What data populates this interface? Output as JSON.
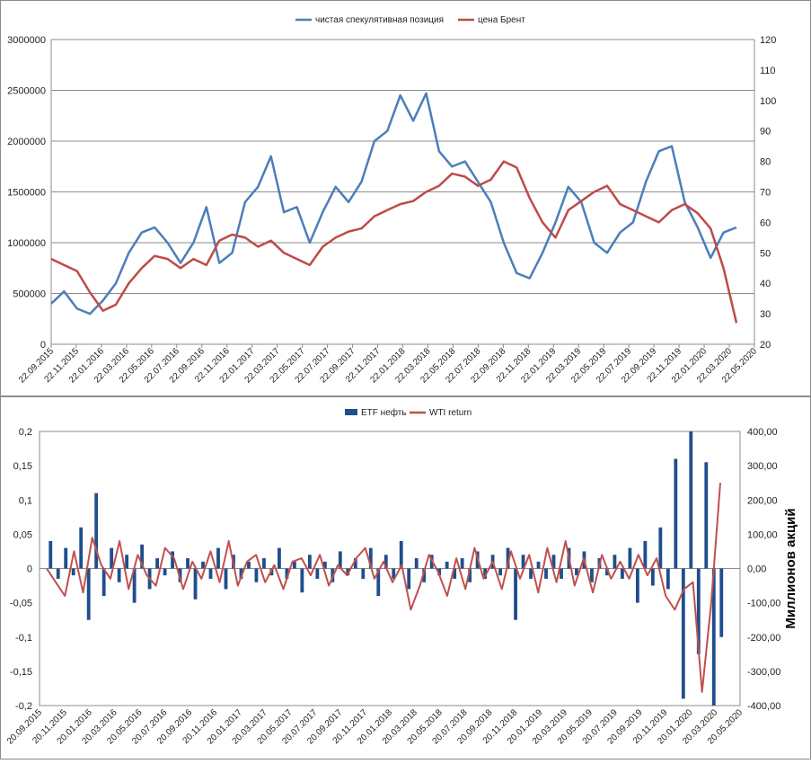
{
  "colors": {
    "blue": "#4a7ebb",
    "red": "#be4b48",
    "navy": "#1f4e8c",
    "darkred": "#c0504d"
  },
  "chart_data": [
    {
      "type": "line",
      "legend": [
        "чистая спекулятивная позиция",
        "цена Брент"
      ],
      "legend_position": "top-center",
      "y_left": {
        "min": 0,
        "max": 3000000,
        "step": 500000,
        "ticks": [
          "0",
          "500000",
          "1000000",
          "1500000",
          "2000000",
          "2500000",
          "3000000"
        ]
      },
      "y_right": {
        "min": 20,
        "max": 120,
        "step": 10,
        "ticks": [
          "20",
          "30",
          "40",
          "50",
          "60",
          "70",
          "80",
          "90",
          "100",
          "110",
          "120"
        ]
      },
      "x_ticks": [
        "22.09.2015",
        "22.11.2015",
        "22.01.2016",
        "22.03.2016",
        "22.05.2016",
        "22.07.2016",
        "22.09.2016",
        "22.11.2016",
        "22.01.2017",
        "22.03.2017",
        "22.05.2017",
        "22.07.2017",
        "22.09.2017",
        "22.11.2017",
        "22.01.2018",
        "22.03.2018",
        "22.05.2018",
        "22.07.2018",
        "22.09.2018",
        "22.11.2018",
        "22.01.2019",
        "22.03.2019",
        "22.05.2019",
        "22.07.2019",
        "22.09.2019",
        "22.11.2019",
        "22.01.2020",
        "22.03.2020",
        "22.05.2020"
      ],
      "series": [
        {
          "name": "чистая спекулятивная позиция",
          "axis": "left",
          "values": [
            400000,
            520000,
            350000,
            300000,
            430000,
            600000,
            900000,
            1100000,
            1150000,
            1000000,
            800000,
            1000000,
            1350000,
            800000,
            900000,
            1400000,
            1550000,
            1850000,
            1300000,
            1350000,
            1000000,
            1300000,
            1550000,
            1400000,
            1600000,
            2000000,
            2100000,
            2450000,
            2200000,
            2470000,
            1900000,
            1750000,
            1800000,
            1600000,
            1400000,
            1000000,
            700000,
            650000,
            900000,
            1200000,
            1550000,
            1400000,
            1000000,
            900000,
            1100000,
            1200000,
            1600000,
            1900000,
            1950000,
            1400000,
            1150000,
            850000,
            1100000,
            1150000
          ]
        },
        {
          "name": "цена Брент",
          "axis": "right",
          "values": [
            48,
            46,
            44,
            37,
            31,
            33,
            40,
            45,
            49,
            48,
            45,
            48,
            46,
            54,
            56,
            55,
            52,
            54,
            50,
            48,
            46,
            52,
            55,
            57,
            58,
            62,
            64,
            66,
            67,
            70,
            72,
            76,
            75,
            72,
            74,
            80,
            78,
            68,
            60,
            55,
            64,
            67,
            70,
            72,
            66,
            64,
            62,
            60,
            64,
            66,
            63,
            58,
            45,
            27
          ]
        }
      ]
    },
    {
      "type": "bar",
      "legend": [
        "ETF нефть",
        "WTI return"
      ],
      "legend_position": "top-center",
      "y_left": {
        "min": -0.2,
        "max": 0.2,
        "step": 0.05,
        "ticks": [
          "0,2",
          "0,15",
          "0,1",
          "0,05",
          "0",
          "-0,05",
          "-0,1",
          "-0,15",
          "-0,2"
        ]
      },
      "y_right": {
        "min": -400,
        "max": 400,
        "step": 100,
        "ticks": [
          "400,00",
          "300,00",
          "200,00",
          "100,00",
          "0,00",
          "-100,00",
          "-200,00",
          "-300,00",
          "-400,00"
        ],
        "label": "Миллионов акций"
      },
      "x_ticks": [
        "20.09.2015",
        "20.11.2015",
        "20.01.2016",
        "20.03.2016",
        "20.05.2016",
        "20.07.2016",
        "20.09.2016",
        "20.11.2016",
        "20.01.2017",
        "20.03.2017",
        "20.05.2017",
        "20.07.2017",
        "20.09.2017",
        "20.11.2017",
        "20.01.2018",
        "20.03.2018",
        "20.05.2018",
        "20.07.2018",
        "20.09.2018",
        "20.11.2018",
        "20.01.2019",
        "20.03.2019",
        "20.05.2019",
        "20.07.2019",
        "20.09.2019",
        "20.11.2019",
        "20.01.2020",
        "20.03.2020",
        "20.05.2020"
      ],
      "series": [
        {
          "name": "ETF нефть",
          "axis": "right",
          "values": [
            80,
            -30,
            60,
            -20,
            120,
            -150,
            220,
            -80,
            60,
            -40,
            40,
            -100,
            70,
            -60,
            30,
            -20,
            50,
            -40,
            30,
            -90,
            20,
            -30,
            60,
            -60,
            40,
            -30,
            20,
            -40,
            30,
            -20,
            60,
            -30,
            20,
            -70,
            40,
            -30,
            20,
            -40,
            50,
            -20,
            30,
            -30,
            60,
            -80,
            40,
            -30,
            80,
            -60,
            30,
            -40,
            40,
            -20,
            20,
            -30,
            30,
            -40,
            50,
            -30,
            40,
            -20,
            60,
            -150,
            40,
            -30,
            20,
            -30,
            40,
            -30,
            60,
            -20,
            50,
            -40,
            30,
            -20,
            40,
            -30,
            60,
            -100,
            80,
            -50,
            120,
            -60,
            320,
            -380,
            400,
            -250,
            310,
            -400,
            -200,
            0
          ]
        },
        {
          "name": "WTI return",
          "axis": "right",
          "values": [
            0,
            -40,
            -80,
            50,
            -70,
            90,
            10,
            -30,
            80,
            -60,
            40,
            -20,
            -50,
            60,
            30,
            -60,
            20,
            -30,
            50,
            -40,
            80,
            -50,
            20,
            40,
            -40,
            10,
            -60,
            20,
            30,
            -20,
            40,
            -50,
            10,
            -20,
            30,
            60,
            -30,
            20,
            -40,
            10,
            -120,
            -50,
            40,
            -10,
            -80,
            30,
            -60,
            60,
            -30,
            20,
            -60,
            50,
            -30,
            40,
            -70,
            60,
            -40,
            80,
            -50,
            30,
            -70,
            40,
            -30,
            20,
            -30,
            40,
            -20,
            30,
            -80,
            -120,
            -60,
            -40,
            -360,
            -100,
            250
          ]
        }
      ]
    }
  ]
}
